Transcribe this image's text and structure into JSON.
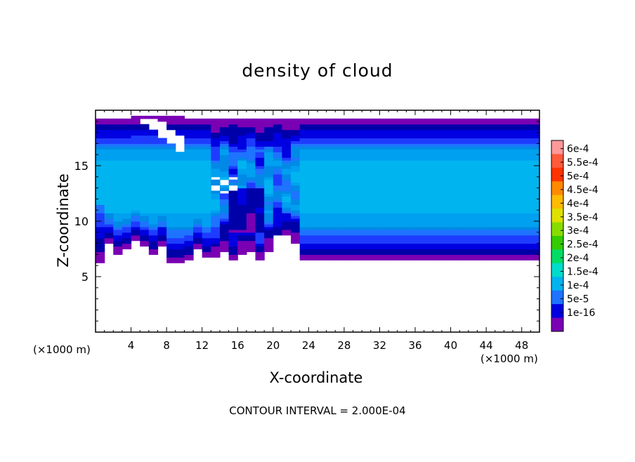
{
  "chart_data": {
    "type": "heatmap",
    "title": "density of cloud",
    "xlabel": "X-coordinate",
    "ylabel": "Z-coordinate",
    "x_unit_label": "(×1000 m)",
    "x_ticks": [
      4,
      8,
      12,
      16,
      20,
      24,
      28,
      32,
      36,
      40,
      44,
      48
    ],
    "y_ticks": [
      5,
      10,
      15
    ],
    "xlim": [
      0,
      50
    ],
    "ylim": [
      0,
      20
    ],
    "contour_interval_text": "CONTOUR INTERVAL = 2.000E-04",
    "colorbar": {
      "levels": [
        "6e-4",
        "5.5e-4",
        "5e-4",
        "4.5e-4",
        "4e-4",
        "3.5e-4",
        "3e-4",
        "2.5e-4",
        "2e-4",
        "1.5e-4",
        "1e-4",
        "5e-5",
        "1e-16"
      ],
      "colors": [
        "#ff9999",
        "#ff5a3c",
        "#ff3300",
        "#ff8a00",
        "#ffbb00",
        "#e0e000",
        "#88dd00",
        "#33cc00",
        "#00dd66",
        "#00dccc",
        "#00b4f0",
        "#1e73ff",
        "#0000e0",
        "#7a00b4"
      ]
    },
    "value_scale": [
      "#7a00b4",
      "#0000a8",
      "#0000e0",
      "#1e3cff",
      "#1e73ff",
      "#008ae6",
      "#00a0f0",
      "#00b4f0"
    ],
    "cells": {
      "x_step": 1,
      "y_step": 0.25,
      "x_count": 50,
      "y_count": 80,
      "description_ref": "value grid generated in script from field levels"
    }
  }
}
